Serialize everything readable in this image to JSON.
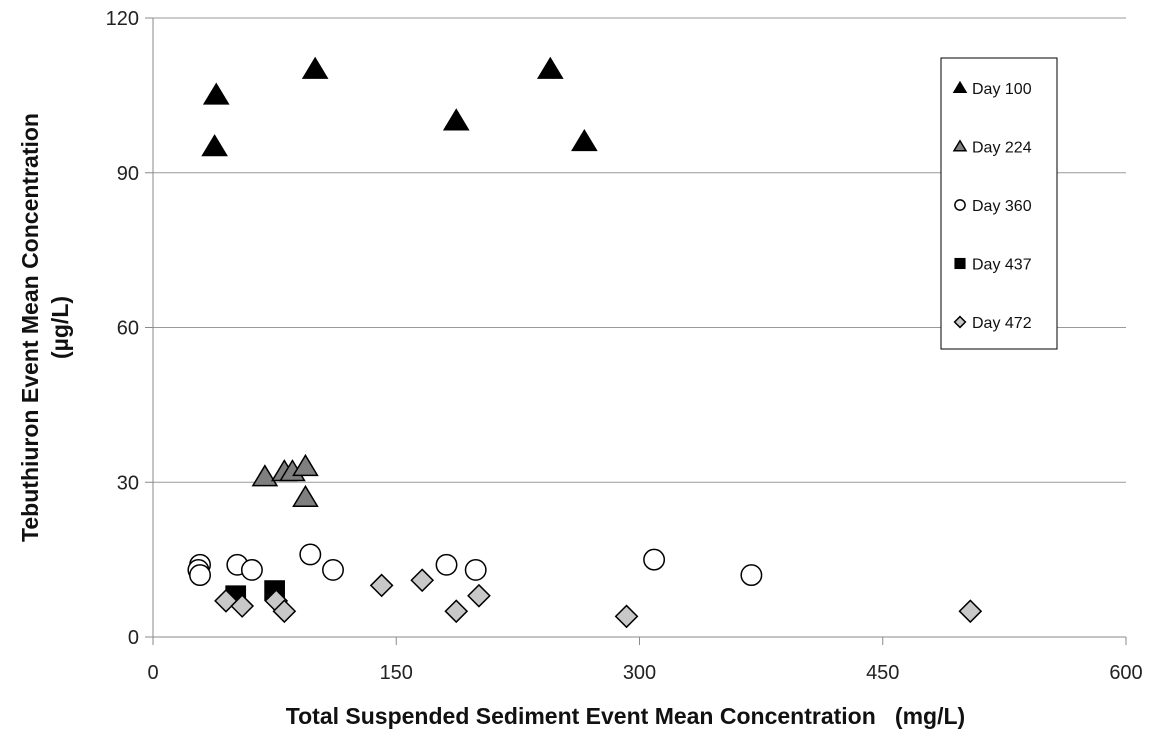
{
  "chart_data": {
    "type": "scatter",
    "title": "",
    "xlabel": "Total Suspended Sediment Event Mean Concentration   (mg/L)",
    "ylabel_lines": [
      "Tebuthiuron Event Mean Concentration",
      "(µg/L)"
    ],
    "xlim": [
      0,
      600
    ],
    "ylim": [
      0,
      120
    ],
    "x_ticks": [
      0,
      150,
      300,
      450,
      600
    ],
    "y_ticks": [
      0,
      30,
      60,
      90,
      120
    ],
    "x_tick_labels": [
      "0",
      "150",
      "300",
      "450",
      "600"
    ],
    "y_tick_labels": [
      "0",
      "30",
      "60",
      "90",
      "120"
    ],
    "grid": "horizontal",
    "legend_position": "top-right",
    "series": [
      {
        "name": "Day 100",
        "marker": "triangle",
        "fill": "#000000",
        "stroke": "#000000",
        "points": [
          [
            39,
            105
          ],
          [
            38,
            95
          ],
          [
            100,
            110
          ],
          [
            187,
            100
          ],
          [
            245,
            110
          ],
          [
            266,
            96
          ]
        ]
      },
      {
        "name": "Day 224",
        "marker": "triangle",
        "fill": "#7f7f7f",
        "stroke": "#000000",
        "points": [
          [
            69,
            31
          ],
          [
            81,
            32
          ],
          [
            86,
            32
          ],
          [
            94,
            33
          ],
          [
            94,
            27
          ]
        ]
      },
      {
        "name": "Day 360",
        "marker": "circle",
        "fill": "#ffffff",
        "stroke": "#000000",
        "points": [
          [
            29,
            14
          ],
          [
            28,
            13
          ],
          [
            29,
            12
          ],
          [
            52,
            14
          ],
          [
            61,
            13
          ],
          [
            97,
            16
          ],
          [
            111,
            13
          ],
          [
            181,
            14
          ],
          [
            199,
            13
          ],
          [
            309,
            15
          ],
          [
            369,
            12
          ]
        ]
      },
      {
        "name": "Day 437",
        "marker": "square",
        "fill": "#000000",
        "stroke": "#000000",
        "points": [
          [
            51,
            8
          ],
          [
            75,
            9
          ]
        ]
      },
      {
        "name": "Day 472",
        "marker": "diamond",
        "fill": "#c8c8c8",
        "stroke": "#000000",
        "points": [
          [
            45,
            7
          ],
          [
            55,
            6
          ],
          [
            76,
            7
          ],
          [
            81,
            5
          ],
          [
            141,
            10
          ],
          [
            166,
            11
          ],
          [
            187,
            5
          ],
          [
            201,
            8
          ],
          [
            292,
            4
          ],
          [
            504,
            5
          ]
        ]
      }
    ]
  }
}
